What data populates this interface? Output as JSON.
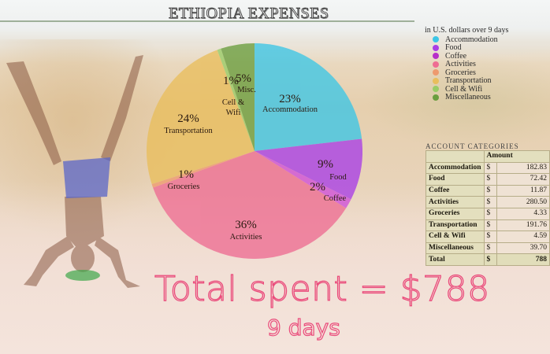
{
  "title": "ETHIOPIA EXPENSES",
  "legend": {
    "caption": "in U.S. dollars over 9 days",
    "items": [
      {
        "label": "Accommodation",
        "color": "#3cc6e6"
      },
      {
        "label": "Food",
        "color": "#a93ee6"
      },
      {
        "label": "Coffee",
        "color": "#b72fc9"
      },
      {
        "label": "Activities",
        "color": "#ee6d93"
      },
      {
        "label": "Groceries",
        "color": "#ee9a6e"
      },
      {
        "label": "Transportation",
        "color": "#e9be5c"
      },
      {
        "label": "Cell & Wifi",
        "color": "#99cc66"
      },
      {
        "label": "Miscellaneous",
        "color": "#6a9e3e"
      }
    ]
  },
  "pie_labels": {
    "accommodation": {
      "pct": "23%",
      "name": "Accommodation"
    },
    "food": {
      "pct": "9%",
      "name": "Food"
    },
    "coffee": {
      "pct": "2%",
      "name": "Coffee"
    },
    "activities": {
      "pct": "36%",
      "name": "Activities"
    },
    "groceries": {
      "pct": "1%",
      "name": "Groceries"
    },
    "transportation": {
      "pct": "24%",
      "name": "Transportation"
    },
    "cell_wifi": {
      "pct": "1%",
      "name_line1": "Cell &",
      "name_line2": "Wifi"
    },
    "misc": {
      "pct": "5%",
      "name": "Misc."
    }
  },
  "table": {
    "title": "ACCOUNT CATEGORIES",
    "header": {
      "name": "",
      "currency": "",
      "amount": "Amount"
    },
    "rows": [
      {
        "name": "Accommodation",
        "currency": "$",
        "amount": "182.83"
      },
      {
        "name": "Food",
        "currency": "$",
        "amount": "72.42"
      },
      {
        "name": "Coffee",
        "currency": "$",
        "amount": "11.87"
      },
      {
        "name": "Activities",
        "currency": "$",
        "amount": "280.50"
      },
      {
        "name": "Groceries",
        "currency": "$",
        "amount": "4.33"
      },
      {
        "name": "Transportation",
        "currency": "$",
        "amount": "191.76"
      },
      {
        "name": "Cell & Wifi",
        "currency": "$",
        "amount": "4.59"
      },
      {
        "name": "Miscellaneous",
        "currency": "$",
        "amount": "39.70"
      }
    ],
    "total": {
      "name": "Total",
      "currency": "$",
      "amount": "788"
    }
  },
  "summary": {
    "total_text": "Total spent = $788",
    "days_text": "9 days"
  },
  "chart_data": {
    "type": "pie",
    "title": "ETHIOPIA EXPENSES",
    "subtitle": "in U.S. dollars over 9 days",
    "categories": [
      "Accommodation",
      "Food",
      "Coffee",
      "Activities",
      "Groceries",
      "Transportation",
      "Cell & Wifi",
      "Miscellaneous"
    ],
    "values": [
      182.83,
      72.42,
      11.87,
      280.5,
      4.33,
      191.76,
      4.59,
      39.7
    ],
    "percent_labels": [
      "23%",
      "9%",
      "2%",
      "36%",
      "1%",
      "24%",
      "1%",
      "5%"
    ],
    "colors": [
      "#3cc6e6",
      "#a93ee6",
      "#d04fd9",
      "#ee6d93",
      "#ee9a6e",
      "#e9be5c",
      "#99cc66",
      "#6a9e3e"
    ],
    "total": 788,
    "legend_position": "right",
    "annotations": [
      "Total spent = $788",
      "9 days"
    ]
  }
}
